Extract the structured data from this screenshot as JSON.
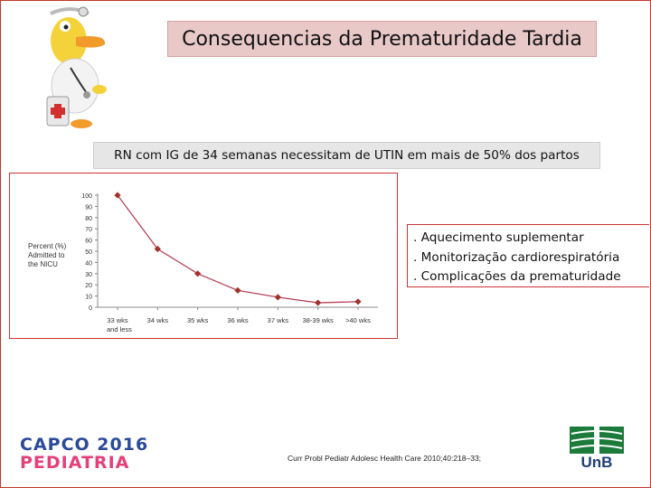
{
  "slide": {
    "title": "Consequencias da Prematuridade Tardia",
    "subtitle": "RN com IG de 34 semanas necessitam de UTIN em mais de 50% dos partos",
    "bullets": [
      ". Aquecimento suplementar",
      ". Monitorização cardiorespiratória",
      ". Complicações da prematuridade"
    ],
    "footer": {
      "logo_line1": "CAPCO 2016",
      "logo_line2": "PEDIATRIA",
      "citation": "Curr Probl Pediatr Adolesc Health Care 2010;40:218–33;",
      "unb_label": "UnB"
    },
    "colors": {
      "frame": "#c0392b",
      "title_bg": "#e9c8c8",
      "subtitle_bg": "#e6e6e6",
      "line": "#b5445a",
      "marker": "#a3302a",
      "unb_green": "#1c7a3a",
      "unb_blue": "#1f3f7a"
    }
  },
  "chart_data": {
    "type": "line",
    "ylabel_lines": [
      "Percent (%)",
      "Admitted to",
      "the NICU"
    ],
    "categories": [
      [
        "33 wks",
        "and less"
      ],
      [
        "34 wks"
      ],
      [
        "35 wks"
      ],
      [
        "36 wks"
      ],
      [
        "37 wks"
      ],
      [
        "38-39 wks"
      ],
      [
        ">40 wks"
      ]
    ],
    "values": [
      100,
      52,
      30,
      15,
      9,
      4,
      5
    ],
    "ylim": [
      0,
      100
    ],
    "yticks": [
      0,
      10,
      20,
      30,
      40,
      50,
      60,
      70,
      80,
      90,
      100
    ],
    "grid": false
  }
}
